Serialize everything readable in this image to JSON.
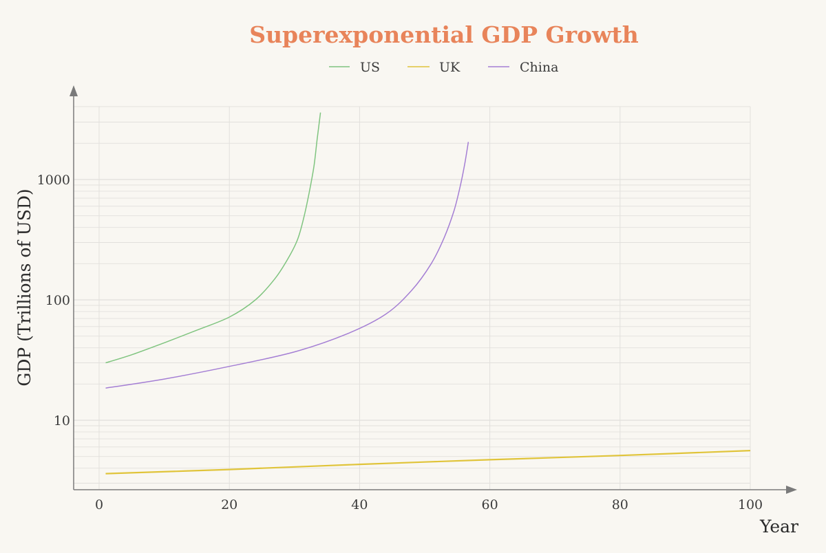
{
  "colors": {
    "background": "#f9f7f2",
    "title": "#e8845a",
    "grid": "#e2e0dc",
    "axis": "#7a7a7a"
  },
  "chart_data": {
    "type": "line",
    "title": "Superexponential GDP Growth",
    "xlabel": "Year",
    "ylabel": "GDP (Trillions of USD)",
    "y_scale": "log",
    "xlim": [
      0,
      100
    ],
    "ylim": [
      2.9,
      3700
    ],
    "x_ticks": [
      0,
      20,
      40,
      60,
      80,
      100
    ],
    "y_ticks": [
      10,
      100,
      1000
    ],
    "grid": true,
    "legend_position": "top-center",
    "series": [
      {
        "name": "US",
        "color": "#7fc47f",
        "x": [
          1,
          5,
          10,
          15,
          20,
          24,
          27,
          29,
          30.5,
          31.5,
          32.3,
          33,
          33.5,
          34
        ],
        "y": [
          30,
          35,
          44,
          56,
          72,
          100,
          150,
          220,
          320,
          500,
          800,
          1300,
          2200,
          3600
        ]
      },
      {
        "name": "UK",
        "color": "#e0c43a",
        "x": [
          1,
          20,
          40,
          60,
          80,
          100
        ],
        "y": [
          3.6,
          3.9,
          4.3,
          4.7,
          5.1,
          5.6
        ]
      },
      {
        "name": "China",
        "color": "#a47ed4",
        "x": [
          1,
          10,
          20,
          30,
          38,
          44,
          48,
          51,
          53,
          54.5,
          55.5,
          56.2,
          56.7
        ],
        "y": [
          18.5,
          22,
          28,
          37,
          52,
          76,
          120,
          200,
          330,
          550,
          900,
          1400,
          2050
        ]
      }
    ]
  }
}
